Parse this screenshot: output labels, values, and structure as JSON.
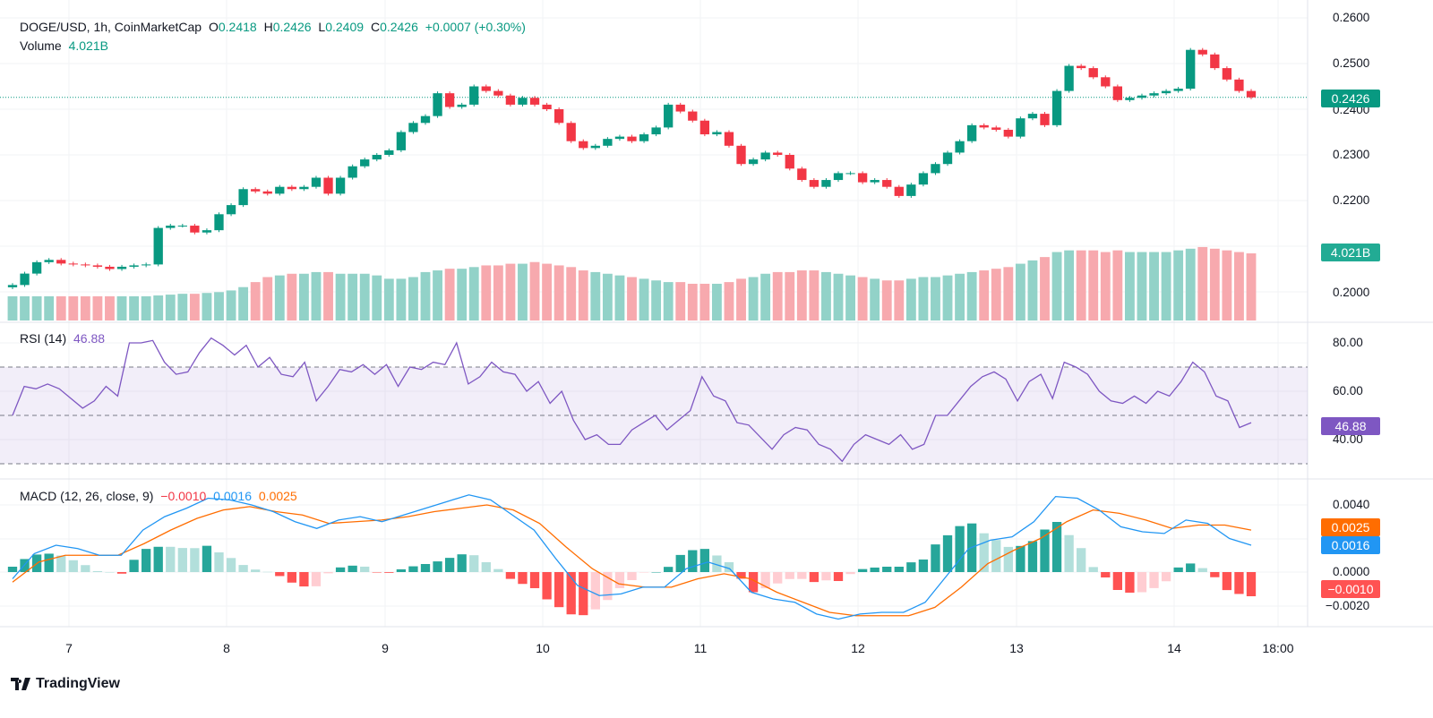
{
  "header": {
    "symbol": "DOGE/USD, 1h, CoinMarketCap",
    "o_label": "O",
    "o": "0.2418",
    "h_label": "H",
    "h": "0.2426",
    "l_label": "L",
    "l": "0.2409",
    "c_label": "C",
    "c": "0.2426",
    "change": "+0.0007 (+0.30%)",
    "volume_label": "Volume",
    "volume": "4.021B"
  },
  "rsi_legend": {
    "label": "RSI (14)",
    "value": "46.88"
  },
  "macd_legend": {
    "label": "MACD (12, 26, close, 9)",
    "hist": "−0.0010",
    "macd": "0.0016",
    "signal": "0.0025"
  },
  "badges": {
    "price": "0.2426",
    "volume": "4.021B",
    "rsi": "46.88",
    "signal": "0.0025",
    "macd": "0.0016",
    "hist": "−0.0010"
  },
  "price_axis": [
    "0.2600",
    "0.2500",
    "0.2400",
    "0.2300",
    "0.2200",
    "0.2000"
  ],
  "rsi_axis": [
    "80.00",
    "60.00",
    "40.00"
  ],
  "macd_axis": [
    "0.0040",
    "0.0000",
    "−0.0020"
  ],
  "x_ticks": [
    "7",
    "8",
    "9",
    "10",
    "11",
    "12",
    "13",
    "14",
    "18:00"
  ],
  "brand": "TradingView",
  "colors": {
    "up": "#089981",
    "down": "#f23645",
    "vol_up": "#92d2c8",
    "vol_down": "#f7a9ae",
    "rsi": "#7e57c2",
    "macd": "#2196f3",
    "signal": "#ff6d00"
  },
  "chart_data": {
    "type": "candlestick",
    "price_ylim": [
      0.2,
      0.26
    ],
    "closes": [
      0.2015,
      0.204,
      0.2065,
      0.207,
      0.2062,
      0.206,
      0.2058,
      0.2055,
      0.205,
      0.2055,
      0.2058,
      0.206,
      0.214,
      0.2145,
      0.2145,
      0.213,
      0.2135,
      0.217,
      0.219,
      0.2225,
      0.222,
      0.2215,
      0.223,
      0.2225,
      0.223,
      0.225,
      0.2215,
      0.225,
      0.2275,
      0.229,
      0.23,
      0.231,
      0.235,
      0.237,
      0.2385,
      0.2435,
      0.2405,
      0.241,
      0.245,
      0.244,
      0.243,
      0.241,
      0.2425,
      0.241,
      0.24,
      0.237,
      0.233,
      0.2315,
      0.232,
      0.2335,
      0.234,
      0.233,
      0.2345,
      0.236,
      0.241,
      0.2395,
      0.2375,
      0.2345,
      0.235,
      0.232,
      0.228,
      0.229,
      0.2305,
      0.23,
      0.227,
      0.2245,
      0.223,
      0.2245,
      0.226,
      0.226,
      0.224,
      0.2245,
      0.223,
      0.221,
      0.2235,
      0.226,
      0.228,
      0.2305,
      0.233,
      0.2365,
      0.236,
      0.2355,
      0.234,
      0.238,
      0.239,
      0.2365,
      0.244,
      0.2495,
      0.249,
      0.247,
      0.245,
      0.242,
      0.2425,
      0.243,
      0.2435,
      0.244,
      0.2445,
      0.253,
      0.252,
      0.249,
      0.2465,
      0.244,
      0.2426
    ],
    "volume_b": [
      1.45,
      1.45,
      1.45,
      1.45,
      1.45,
      1.45,
      1.45,
      1.45,
      1.45,
      1.45,
      1.45,
      1.45,
      1.5,
      1.55,
      1.6,
      1.6,
      1.65,
      1.7,
      1.8,
      2.0,
      2.3,
      2.6,
      2.7,
      2.8,
      2.8,
      2.9,
      2.9,
      2.8,
      2.8,
      2.8,
      2.7,
      2.5,
      2.5,
      2.6,
      2.9,
      3.0,
      3.1,
      3.1,
      3.2,
      3.3,
      3.3,
      3.4,
      3.4,
      3.5,
      3.4,
      3.3,
      3.2,
      3.0,
      2.9,
      2.8,
      2.7,
      2.6,
      2.5,
      2.4,
      2.3,
      2.3,
      2.2,
      2.2,
      2.2,
      2.3,
      2.5,
      2.6,
      2.8,
      2.9,
      2.9,
      3.0,
      3.0,
      2.9,
      2.8,
      2.7,
      2.6,
      2.5,
      2.4,
      2.4,
      2.5,
      2.6,
      2.6,
      2.7,
      2.8,
      2.9,
      3.0,
      3.1,
      3.2,
      3.4,
      3.6,
      3.8,
      4.1,
      4.2,
      4.2,
      4.2,
      4.1,
      4.2,
      4.1,
      4.1,
      4.1,
      4.1,
      4.2,
      4.3,
      4.4,
      4.3,
      4.2,
      4.1,
      4.021
    ],
    "rsi": {
      "ylim": [
        20,
        90
      ],
      "bands": [
        30,
        50,
        70
      ],
      "values": [
        50,
        62,
        61,
        63,
        61,
        57,
        53,
        56,
        62,
        58,
        80,
        80,
        81,
        72,
        67,
        68,
        76,
        82,
        79,
        75,
        79,
        70,
        74,
        67,
        66,
        72,
        56,
        62,
        69,
        68,
        71,
        67,
        71,
        62,
        70,
        69,
        72,
        71,
        80,
        63,
        66,
        72,
        68,
        67,
        60,
        64,
        55,
        60,
        48,
        40,
        42,
        38,
        38,
        44,
        47,
        50,
        44,
        48,
        52,
        66,
        58,
        56,
        47,
        46,
        41,
        36,
        42,
        45,
        44,
        38,
        36,
        31,
        38,
        42,
        40,
        38,
        42,
        36,
        38,
        50,
        50,
        56,
        62,
        66,
        68,
        65,
        56,
        64,
        67,
        57,
        72,
        70,
        67,
        60,
        56,
        55,
        58,
        55,
        60,
        58,
        64,
        72,
        68,
        58,
        56,
        45,
        47
      ]
    },
    "macd": {
      "ylim": [
        -0.0035,
        0.0055
      ],
      "macd": [
        -0.0004,
        0.0011,
        0.0016,
        0.0014,
        0.001,
        0.001,
        0.0025,
        0.0033,
        0.0038,
        0.0044,
        0.0043,
        0.004,
        0.0036,
        0.003,
        0.0026,
        0.0031,
        0.0033,
        0.003,
        0.0034,
        0.0038,
        0.0042,
        0.0046,
        0.0043,
        0.0034,
        0.0025,
        0.0008,
        -0.0008,
        -0.0014,
        -0.0013,
        -0.0009,
        -0.0009,
        0.0002,
        0.0006,
        0.0002,
        -0.0012,
        -0.0016,
        -0.0018,
        -0.0025,
        -0.0028,
        -0.0025,
        -0.0024,
        -0.0024,
        -0.0018,
        -0.0002,
        0.0014,
        0.0019,
        0.0021,
        0.003,
        0.0045,
        0.0044,
        0.0037,
        0.0027,
        0.0024,
        0.0023,
        0.0031,
        0.0029,
        0.002,
        0.0016
      ],
      "signal": [
        -0.0006,
        0.0006,
        0.001,
        0.001,
        0.001,
        0.0017,
        0.0025,
        0.0032,
        0.0037,
        0.0039,
        0.0036,
        0.0034,
        0.0029,
        0.003,
        0.0031,
        0.0033,
        0.0036,
        0.0038,
        0.004,
        0.0037,
        0.0029,
        0.0015,
        0.0002,
        -0.0007,
        -0.0009,
        -0.0009,
        -0.0004,
        -0.0001,
        -0.0004,
        -0.0012,
        -0.0018,
        -0.0024,
        -0.0026,
        -0.0026,
        -0.0026,
        -0.0021,
        -0.0009,
        0.0005,
        0.0013,
        0.002,
        0.003,
        0.0037,
        0.0035,
        0.0031,
        0.0026,
        0.0028,
        0.0028,
        0.0025
      ]
    }
  }
}
